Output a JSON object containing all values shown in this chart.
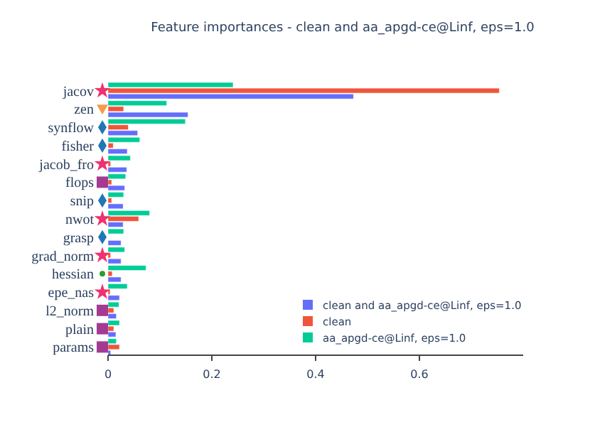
{
  "chart_data": {
    "type": "bar",
    "orientation": "horizontal",
    "title": "Feature importances - clean and aa_apgd-ce@Linf, eps=1.0",
    "categories": [
      "jacov",
      "zen",
      "synflow",
      "fisher",
      "jacob_fro",
      "flops",
      "snip",
      "nwot",
      "grasp",
      "grad_norm",
      "hessian",
      "epe_nas",
      "l2_norm",
      "plain",
      "params"
    ],
    "series": [
      {
        "name": "clean and aa_apgd-ce@Linf, eps=1.0",
        "color": "#636efa",
        "values": [
          0.473,
          0.154,
          0.057,
          0.037,
          0.036,
          0.032,
          0.029,
          0.029,
          0.025,
          0.025,
          0.025,
          0.022,
          0.016,
          0.015,
          0.005
        ]
      },
      {
        "name": "clean",
        "color": "#ef553b",
        "values": [
          0.754,
          0.03,
          0.039,
          0.01,
          0.005,
          0.007,
          0.007,
          0.059,
          null,
          0.005,
          0.008,
          0.004,
          0.011,
          0.011,
          0.022
        ]
      },
      {
        "name": "aa_apgd-ce@Linf, eps=1.0",
        "color": "#00cc96",
        "values": [
          0.241,
          0.113,
          0.149,
          0.061,
          0.043,
          0.034,
          0.03,
          0.08,
          0.03,
          0.032,
          0.073,
          0.037,
          0.021,
          0.022,
          0.016
        ]
      }
    ],
    "xlim": [
      0,
      0.8
    ],
    "xticks": [
      0,
      0.2,
      0.4,
      0.6
    ],
    "legend": "bottom right",
    "grid": false
  }
}
